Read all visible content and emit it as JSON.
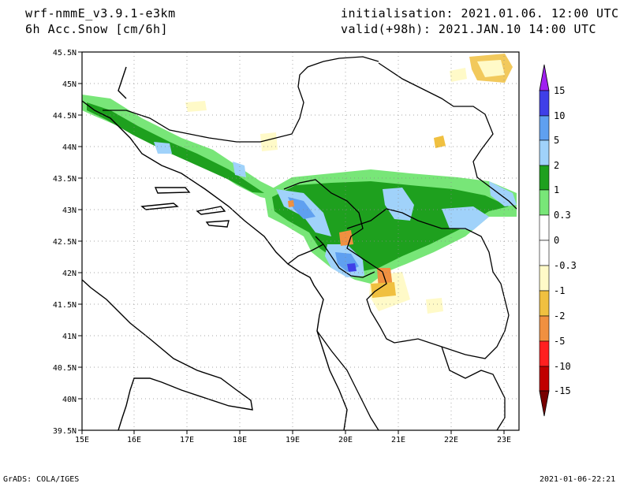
{
  "header": {
    "model": "wrf-nmmE_v3.9.1-e3km",
    "variable": "6h Acc.Snow [cm/6h]",
    "init": "initialisation: 2021.01.06.  12:00 UTC",
    "valid": "valid(+98h): 2021.JAN.10 14:00 UTC"
  },
  "map": {
    "lat_labels": [
      "45.5N",
      "45N",
      "44.5N",
      "44N",
      "43.5N",
      "43N",
      "42.5N",
      "42N",
      "41.5N",
      "41N",
      "40.5N",
      "40N",
      "39.5N"
    ],
    "lon_labels": [
      "15E",
      "16E",
      "17E",
      "18E",
      "19E",
      "20E",
      "21E",
      "22E",
      "23E"
    ],
    "lat_range": [
      39.5,
      45.5
    ],
    "lon_range": [
      15,
      23.3
    ],
    "grid": "dotted"
  },
  "colorbar": {
    "labels": [
      "15",
      "10",
      "5",
      "2",
      "1",
      "0.3",
      "0",
      "-0.3",
      "-1",
      "-2",
      "-5",
      "-10",
      "-15"
    ],
    "colors": [
      "#3f3fe8",
      "#5fa0f0",
      "#a0d2fa",
      "#1ea01e",
      "#78e678",
      "#ffffff",
      "#ffffff",
      "#fffac8",
      "#f0c040",
      "#f09040",
      "#ff2020",
      "#c00000",
      "#8c0000"
    ],
    "top_arrow_color": "#a020f0",
    "bottom_arrow_color": "#780000"
  },
  "footer": {
    "left": "GrADS: COLA/IGES",
    "right": "2021-01-06-22:21"
  }
}
